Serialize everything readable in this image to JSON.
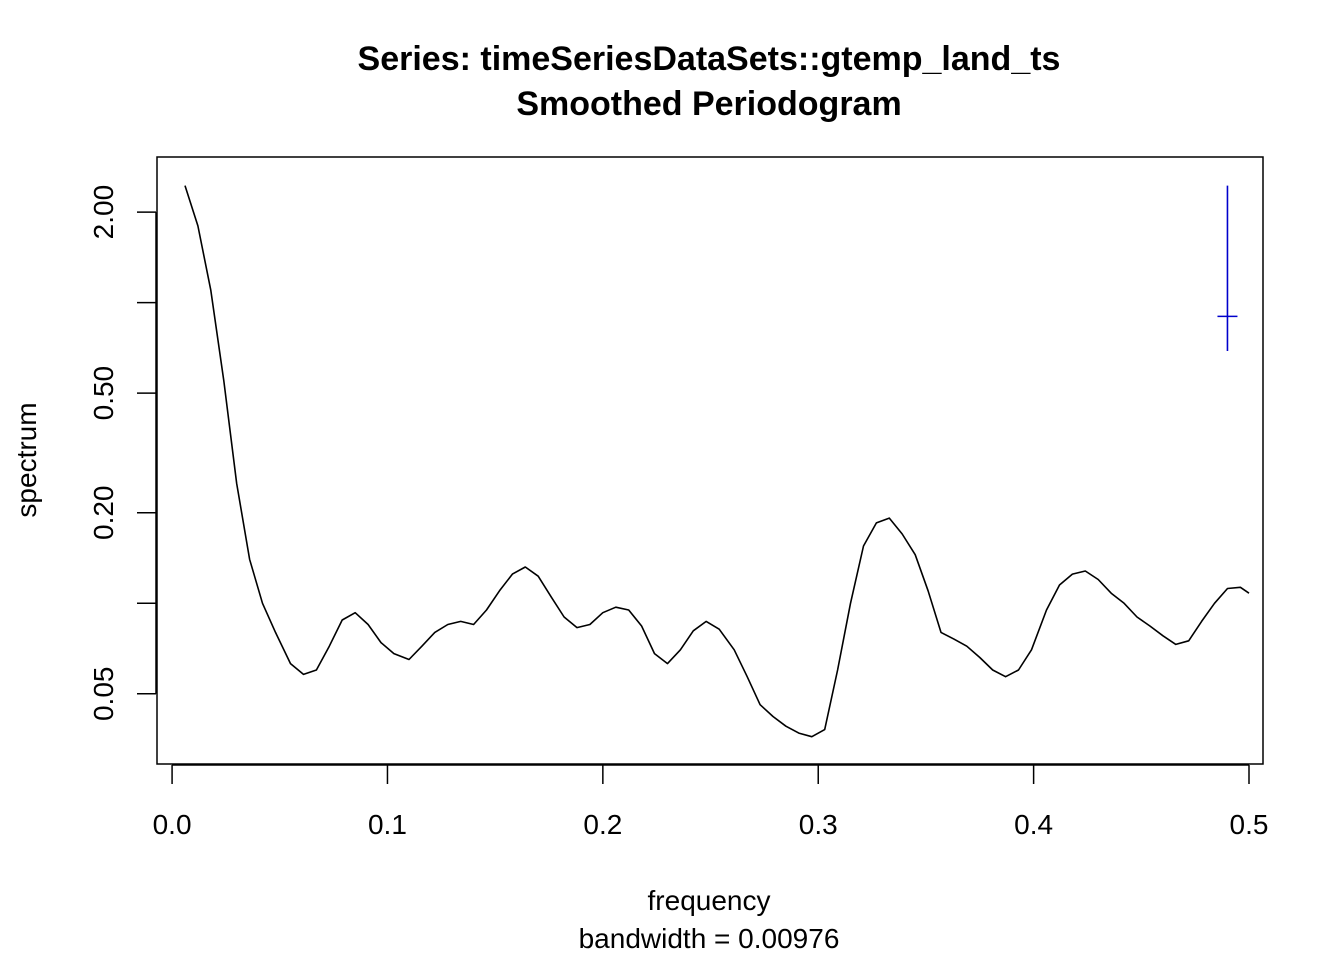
{
  "chart_data": {
    "type": "line",
    "title": "Series: timeSeriesDataSets::gtemp_land_ts",
    "subtitle": "Smoothed Periodogram",
    "xlabel": "frequency",
    "xlabel_sub": "bandwidth = 0.00976",
    "ylabel": "spectrum",
    "y_scale": "log",
    "xlim": [
      -0.007,
      0.5065
    ],
    "ylim": [
      0.0292,
      3.05
    ],
    "x_ticks": [
      0.0,
      0.1,
      0.2,
      0.3,
      0.4,
      0.5
    ],
    "x_tick_labels": [
      "0.0",
      "0.1",
      "0.2",
      "0.3",
      "0.4",
      "0.5"
    ],
    "y_ticks": [
      0.05,
      0.1,
      0.2,
      0.5,
      1.0,
      2.0
    ],
    "y_tick_labels": [
      "0.05",
      "",
      "0.20",
      "0.50",
      "",
      "2.00"
    ],
    "grid": false,
    "colors": {
      "series": "#000000",
      "ci_bar": "#0000cc"
    },
    "series": [
      {
        "x": [
          0.006,
          0.012,
          0.018,
          0.024,
          0.03,
          0.036,
          0.042,
          0.048,
          0.055,
          0.061,
          0.067,
          0.073,
          0.079,
          0.085,
          0.091,
          0.097,
          0.103,
          0.11,
          0.116,
          0.122,
          0.128,
          0.134,
          0.14,
          0.146,
          0.152,
          0.158,
          0.164,
          0.17,
          0.176,
          0.182,
          0.188,
          0.194,
          0.2,
          0.206,
          0.212,
          0.218,
          0.224,
          0.23,
          0.236,
          0.242,
          0.248,
          0.254,
          0.261,
          0.267,
          0.273,
          0.279,
          0.285,
          0.291,
          0.297,
          0.303,
          0.309,
          0.315,
          0.321,
          0.327,
          0.333,
          0.339,
          0.345,
          0.351,
          0.357,
          0.363,
          0.369,
          0.375,
          0.381,
          0.387,
          0.393,
          0.399,
          0.406,
          0.412,
          0.418,
          0.424,
          0.43,
          0.436,
          0.442,
          0.448,
          0.454,
          0.46,
          0.466,
          0.472,
          0.478,
          0.484,
          0.49,
          0.496,
          0.5
        ],
        "y": [
          2.45,
          1.8,
          1.1,
          0.55,
          0.25,
          0.14,
          0.1,
          0.08,
          0.063,
          0.058,
          0.06,
          0.072,
          0.088,
          0.093,
          0.085,
          0.074,
          0.068,
          0.065,
          0.072,
          0.08,
          0.085,
          0.087,
          0.085,
          0.095,
          0.11,
          0.125,
          0.132,
          0.123,
          0.105,
          0.09,
          0.083,
          0.085,
          0.093,
          0.097,
          0.095,
          0.084,
          0.068,
          0.063,
          0.07,
          0.081,
          0.087,
          0.082,
          0.07,
          0.057,
          0.046,
          0.042,
          0.039,
          0.037,
          0.036,
          0.038,
          0.06,
          0.1,
          0.155,
          0.185,
          0.192,
          0.17,
          0.145,
          0.11,
          0.08,
          0.076,
          0.072,
          0.066,
          0.06,
          0.057,
          0.06,
          0.07,
          0.095,
          0.115,
          0.125,
          0.128,
          0.12,
          0.108,
          0.1,
          0.09,
          0.084,
          0.078,
          0.073,
          0.075,
          0.087,
          0.1,
          0.112,
          0.113,
          0.108
        ]
      }
    ],
    "ci_bar": {
      "x": 0.49,
      "y_low": 0.69,
      "y_mid": 0.9,
      "y_high": 2.45
    }
  }
}
